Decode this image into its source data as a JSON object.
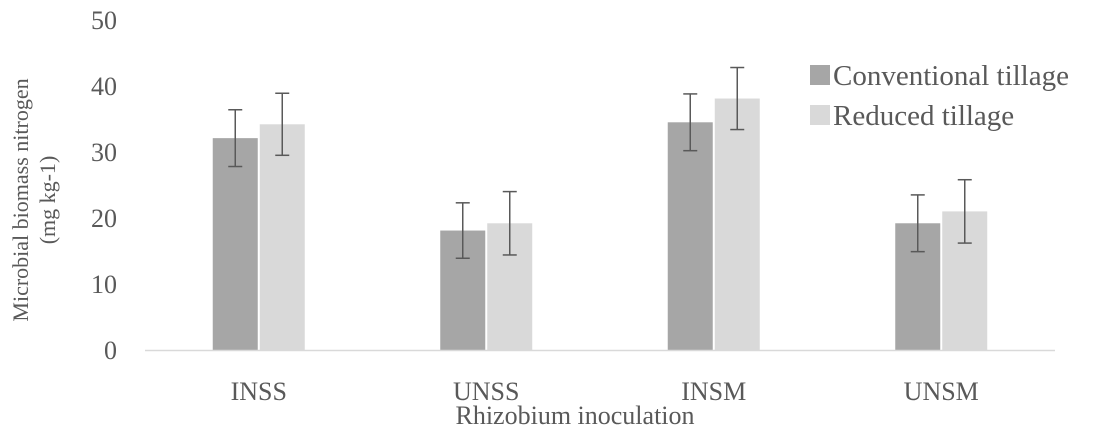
{
  "chart_data": {
    "type": "bar",
    "title": "",
    "xlabel": "Rhizobium inoculation",
    "ylabel_lines": [
      "Microbial biomass nitrogen",
      "(mg kg-1)"
    ],
    "categories": [
      "INSS",
      "UNSS",
      "INSM",
      "UNSM"
    ],
    "series": [
      {
        "name": "Conventional tillage",
        "values": [
          32.1,
          18.1,
          34.5,
          19.2
        ],
        "error": [
          4.3,
          4.2,
          4.3,
          4.3
        ],
        "color": "#a6a6a6"
      },
      {
        "name": "Reduced tillage",
        "values": [
          34.2,
          19.2,
          38.1,
          21.0
        ],
        "error": [
          4.7,
          4.8,
          4.7,
          4.8
        ],
        "color": "#d9d9d9"
      }
    ],
    "ylim": [
      0,
      50
    ],
    "yticks": [
      0,
      10,
      20,
      30,
      40,
      50
    ],
    "grid": false,
    "legend_position": "right"
  }
}
